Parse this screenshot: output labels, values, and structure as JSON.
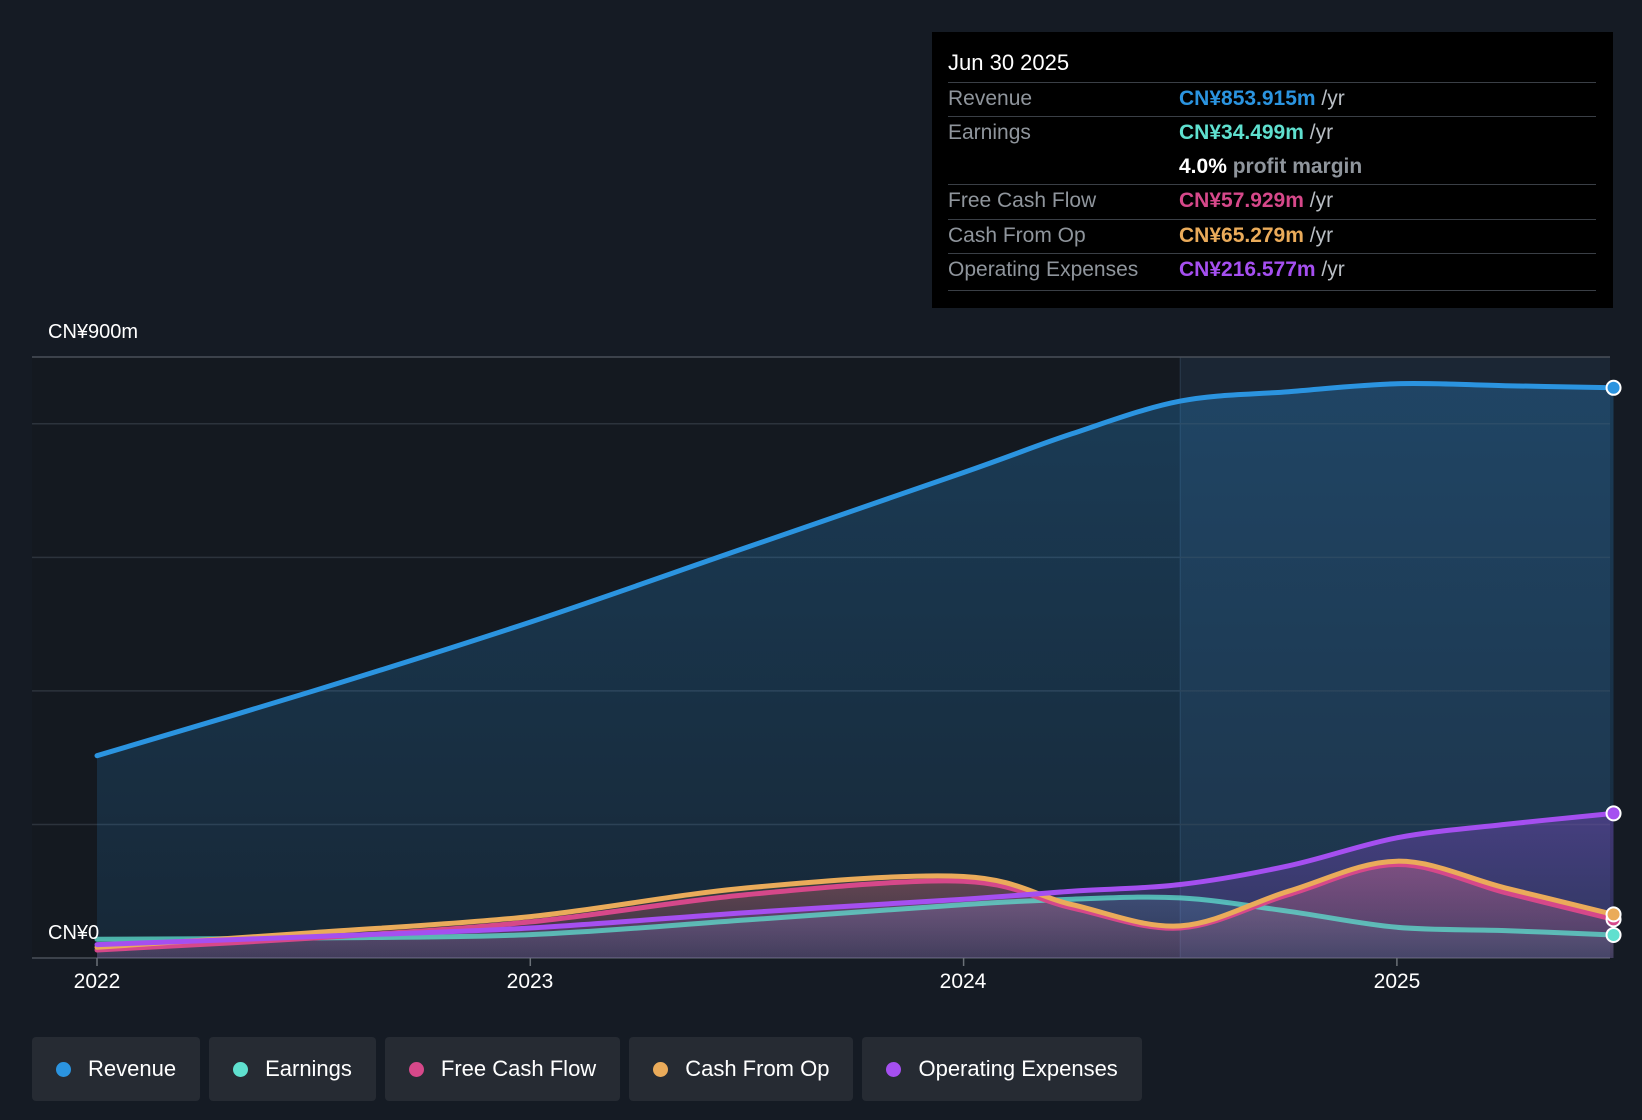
{
  "tooltip": {
    "date": "Jun 30 2025",
    "rows": [
      {
        "label": "Revenue",
        "value": "CN¥853.915m",
        "unit": " /yr",
        "color": "#2b94e0"
      },
      {
        "label": "Earnings",
        "value": "CN¥34.499m",
        "unit": " /yr",
        "color": "#5fe0cf"
      },
      {
        "label": "Free Cash Flow",
        "value": "CN¥57.929m",
        "unit": " /yr",
        "color": "#d6488a"
      },
      {
        "label": "Cash From Op",
        "value": "CN¥65.279m",
        "unit": " /yr",
        "color": "#eaab5a"
      },
      {
        "label": "Operating Expenses",
        "value": "CN¥216.577m",
        "unit": " /yr",
        "color": "#a54ff0"
      }
    ],
    "profit_margin": {
      "value": "4.0%",
      "label": " profit margin"
    }
  },
  "axis": {
    "y_top": "CN¥900m",
    "y_bottom": "CN¥0"
  },
  "legend": [
    {
      "label": "Revenue",
      "color": "#2b94e0"
    },
    {
      "label": "Earnings",
      "color": "#5fe0cf"
    },
    {
      "label": "Free Cash Flow",
      "color": "#d6488a"
    },
    {
      "label": "Cash From Op",
      "color": "#eaab5a"
    },
    {
      "label": "Operating Expenses",
      "color": "#a54ff0"
    }
  ],
  "chart_data": {
    "type": "area",
    "title": "",
    "xlabel": "",
    "ylabel": "",
    "x_ticks": [
      "2022",
      "2023",
      "2024",
      "2025"
    ],
    "ylim": [
      0,
      900
    ],
    "xlim": [
      2021.998,
      2025.5
    ],
    "past_data_start": 2024.5,
    "series": [
      {
        "name": "Revenue",
        "color": "#2b94e0",
        "x": [
          2022.0,
          2022.5,
          2023.0,
          2023.5,
          2024.0,
          2024.25,
          2024.5,
          2024.75,
          2025.0,
          2025.25,
          2025.5
        ],
        "y": [
          303,
          400,
          503,
          615,
          727,
          785,
          834,
          848,
          860,
          857,
          853.9
        ]
      },
      {
        "name": "Earnings",
        "color": "#5fe0cf",
        "x": [
          2022.0,
          2022.5,
          2023.0,
          2023.5,
          2024.0,
          2024.25,
          2024.5,
          2024.75,
          2025.0,
          2025.25,
          2025.5
        ],
        "y": [
          28,
          30,
          35,
          57,
          80,
          88,
          90,
          70,
          46,
          41,
          34.5
        ]
      },
      {
        "name": "Free Cash Flow",
        "color": "#d6488a",
        "x": [
          2022.0,
          2022.5,
          2023.0,
          2023.5,
          2024.0,
          2024.25,
          2024.5,
          2024.75,
          2025.0,
          2025.25,
          2025.5
        ],
        "y": [
          12,
          30,
          54,
          95,
          115,
          75,
          45,
          95,
          140,
          98,
          57.9
        ]
      },
      {
        "name": "Cash From Op",
        "color": "#eaab5a",
        "x": [
          2022.0,
          2022.5,
          2023.0,
          2023.5,
          2024.0,
          2024.25,
          2024.5,
          2024.75,
          2025.0,
          2025.25,
          2025.5
        ],
        "y": [
          16,
          38,
          62,
          105,
          122,
          80,
          48,
          100,
          145,
          105,
          65.3
        ]
      },
      {
        "name": "Operating Expenses",
        "color": "#a54ff0",
        "x": [
          2022.0,
          2022.5,
          2023.0,
          2023.5,
          2024.0,
          2024.25,
          2024.5,
          2024.75,
          2025.0,
          2025.25,
          2025.5
        ],
        "y": [
          20,
          32,
          45,
          68,
          88,
          100,
          110,
          138,
          180,
          200,
          216.6
        ]
      }
    ]
  }
}
